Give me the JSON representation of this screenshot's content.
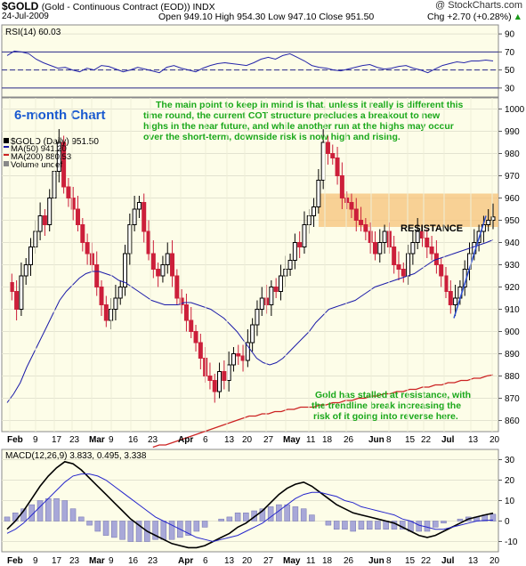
{
  "header": {
    "title": "$GOLD",
    "subtitle": "(Gold - Continuous Contract (EOD))  INDX",
    "watermark": "@ StockCharts.com",
    "date": "24-Jul-2009",
    "ohlc": "Open 949.10  High 954.30  Low 947.10  Close 951.50",
    "change": "Chg +2.70 (+0.28%)",
    "change_arrow": "▲"
  },
  "colors": {
    "panel_bg": "#fdfde8",
    "up_candle": "#000000",
    "down_candle": "#cc1f3a",
    "ma50": "#1a1aa8",
    "ma200": "#cc2222",
    "rsi": "#2626aa",
    "macd": "#000000",
    "signal": "#2626cc",
    "hist": "#a8a8d8",
    "annotation_text": "#1aa81a",
    "chart_label": "#1a5ad0",
    "resistance": "#f5c27a"
  },
  "chart_data": [
    {
      "type": "line",
      "panel": "RSI",
      "title": "RSI(14) 60.03",
      "ylim": [
        20,
        100
      ],
      "y_ticks": [
        30,
        50,
        70,
        90
      ],
      "reference_lines": [
        70,
        50,
        30
      ],
      "values": [
        66,
        71,
        70,
        68,
        62,
        58,
        55,
        52,
        53,
        50,
        48,
        52,
        50,
        55,
        54,
        51,
        48,
        50,
        53,
        51,
        49,
        47,
        53,
        55,
        52,
        50,
        48,
        52,
        55,
        57,
        58,
        57,
        56,
        55,
        58,
        62,
        64,
        62,
        66,
        68,
        64,
        60,
        55,
        53,
        52,
        50,
        49,
        51,
        53,
        55,
        56,
        53,
        51,
        52,
        54,
        55,
        52,
        50,
        47,
        51,
        55,
        57,
        59,
        58,
        60,
        60,
        61,
        60
      ]
    },
    {
      "type": "line",
      "panel": "Price",
      "title": "$GOLD (Daily) 951.50",
      "x_tick_labels": [
        "Feb",
        "9",
        "17",
        "23",
        "Mar",
        "9",
        "16",
        "23",
        "Apr",
        "6",
        "13",
        "20",
        "27",
        "May",
        "11",
        "18",
        "26",
        "Jun",
        "8",
        "15",
        "22",
        "Jul",
        "13",
        "20"
      ],
      "ylim": [
        855,
        1005
      ],
      "y_ticks": [
        860,
        870,
        880,
        890,
        900,
        910,
        920,
        930,
        940,
        950,
        960,
        970,
        980,
        990,
        1000
      ],
      "close": [
        922,
        918,
        910,
        925,
        930,
        938,
        945,
        952,
        948,
        960,
        972,
        985,
        965,
        960,
        955,
        948,
        940,
        935,
        930,
        920,
        912,
        905,
        910,
        915,
        920,
        935,
        948,
        955,
        958,
        945,
        935,
        928,
        925,
        930,
        935,
        925,
        915,
        912,
        905,
        900,
        895,
        888,
        880,
        878,
        873,
        882,
        878,
        885,
        890,
        889,
        887,
        895,
        903,
        910,
        915,
        912,
        920,
        918,
        925,
        928,
        932,
        940,
        938,
        948,
        952,
        956,
        968,
        985,
        980,
        978,
        970,
        960,
        958,
        955,
        950,
        948,
        945,
        940,
        935,
        940,
        945,
        938,
        930,
        928,
        925,
        935,
        940,
        945,
        942,
        938,
        935,
        930,
        925,
        918,
        912,
        915,
        920,
        928,
        935,
        940,
        945,
        948,
        950,
        951.5
      ],
      "series": [
        {
          "name": "MA(50) 941.20",
          "values": [
            868,
            872,
            877,
            884,
            890,
            896,
            902,
            908,
            914,
            918,
            921,
            924,
            926,
            927,
            927,
            926,
            925,
            923,
            922,
            920,
            918,
            916,
            914,
            913,
            912,
            912,
            912,
            913,
            913,
            912,
            911,
            910,
            908,
            906,
            903,
            900,
            896,
            892,
            888,
            886,
            885,
            886,
            888,
            891,
            894,
            897,
            900,
            904,
            907,
            910,
            911,
            912,
            913,
            914,
            916,
            918,
            920,
            921,
            922,
            923,
            924,
            925,
            926,
            928,
            930,
            932,
            933,
            934,
            935,
            936,
            937,
            938,
            939,
            940,
            941.2
          ]
        },
        {
          "name": "MA(200) 880.53",
          "values": [
            848,
            849,
            849,
            850,
            851,
            852,
            853,
            854,
            855,
            856,
            857,
            858,
            859,
            860,
            861,
            862,
            862,
            863,
            863,
            864,
            864,
            865,
            865,
            866,
            866,
            866,
            867,
            867,
            868,
            868,
            869,
            869,
            870,
            870,
            871,
            871,
            872,
            872,
            873,
            873,
            874,
            874,
            875,
            875,
            876,
            876,
            877,
            877,
            878,
            878,
            879,
            879,
            880,
            880.53
          ]
        }
      ],
      "legend": [
        "$GOLD (Daily) 951.50",
        "MA(50) 941.20",
        "MA(200) 880.53",
        "Volume undef"
      ]
    },
    {
      "type": "line",
      "panel": "MACD",
      "title": "MACD(12,26,9) 3.833, 0.495, 3.338",
      "ylim": [
        -15,
        35
      ],
      "y_ticks": [
        -10,
        0,
        10,
        20,
        30
      ],
      "series": [
        {
          "name": "MACD(12,26,9) 3.833",
          "values": [
            -4,
            0,
            5,
            11,
            17,
            22,
            26,
            29,
            28,
            25,
            21,
            17,
            13,
            9,
            5,
            1,
            -2,
            -5,
            -7,
            -9,
            -11,
            -12,
            -13,
            -13,
            -12,
            -10,
            -8,
            -6,
            -3,
            -1,
            2,
            5,
            9,
            13,
            16,
            18,
            19,
            17,
            14,
            11,
            8,
            6,
            4,
            3,
            2,
            1,
            0,
            -1,
            -3,
            -5,
            -7,
            -8,
            -7,
            -5,
            -3,
            -1,
            1,
            2,
            3,
            3.833
          ]
        },
        {
          "name": "0.495",
          "values": [
            -6,
            -4,
            -1,
            3,
            7,
            11,
            15,
            19,
            22,
            23,
            23,
            22,
            20,
            17,
            14,
            11,
            8,
            5,
            2,
            0,
            -2,
            -4,
            -6,
            -8,
            -9,
            -10,
            -9,
            -8,
            -7,
            -5,
            -3,
            -1,
            2,
            5,
            8,
            11,
            13,
            14,
            14,
            13,
            12,
            10,
            9,
            7,
            6,
            5,
            4,
            3,
            1,
            0,
            -2,
            -3,
            -4,
            -4,
            -3,
            -2,
            -1,
            0,
            0.3,
            0.495
          ]
        }
      ],
      "histogram": [
        2,
        4,
        6,
        8,
        10,
        11,
        11,
        10,
        6,
        2,
        -2,
        -5,
        -7,
        -8,
        -9,
        -10,
        -10,
        -10,
        -9,
        -9,
        -9,
        -8,
        -7,
        -5,
        -3,
        0,
        1,
        2,
        4,
        4,
        5,
        6,
        7,
        8,
        8,
        7,
        6,
        3,
        0,
        -2,
        -4,
        -4,
        -5,
        -4,
        -4,
        -4,
        -4,
        -4,
        -4,
        -5,
        -5,
        -5,
        -3,
        -1,
        0,
        1,
        2,
        2,
        3,
        3.338
      ]
    }
  ],
  "annotations": {
    "chart_label": "6-month Chart",
    "main_note_lines": [
      "The main point to keep in mind is that, unless it really is different this",
      "time round, the current COT structure precludes a breakout to new",
      "highs in the near future, and while another run at the highs may occur",
      "over the short-term, downside risk is now high and rising."
    ],
    "resistance_label": "RESISTANCE",
    "side_note_lines": [
      "Gold has stalled at resistance, with",
      "the trendline break increasing the",
      "risk of it going into reverse here."
    ]
  }
}
